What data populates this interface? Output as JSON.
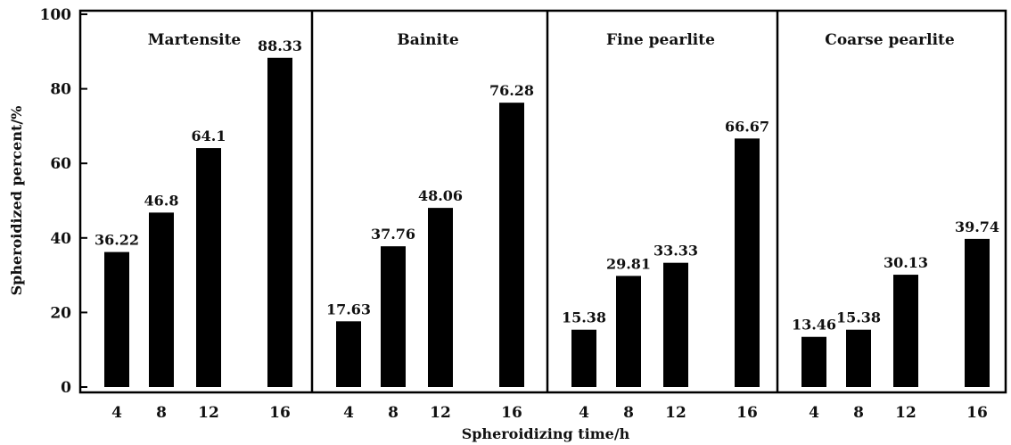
{
  "chart_data": {
    "type": "bar",
    "xlabel": "Spheroidizing time/h",
    "ylabel": "Spheroidized percent/%",
    "ylim": [
      0,
      100
    ],
    "yticks": [
      0,
      20,
      40,
      60,
      80,
      100
    ],
    "categories": [
      "4",
      "8",
      "12",
      "16"
    ],
    "bar_color": "#000000",
    "panels": [
      {
        "title": "Martensite",
        "values": [
          36.22,
          46.8,
          64.1,
          88.33
        ],
        "labels": [
          "36.22",
          "46.8",
          "64.1",
          "88.33"
        ]
      },
      {
        "title": "Bainite",
        "values": [
          17.63,
          37.76,
          48.06,
          76.28
        ],
        "labels": [
          "17.63",
          "37.76",
          "48.06",
          "76.28"
        ]
      },
      {
        "title": "Fine pearlite",
        "values": [
          15.38,
          29.81,
          33.33,
          66.67
        ],
        "labels": [
          "15.38",
          "29.81",
          "33.33",
          "66.67"
        ]
      },
      {
        "title": "Coarse pearlite",
        "values": [
          13.46,
          15.38,
          30.13,
          39.74
        ],
        "labels": [
          "13.46",
          "15.38",
          "30.13",
          "39.74"
        ]
      }
    ]
  }
}
